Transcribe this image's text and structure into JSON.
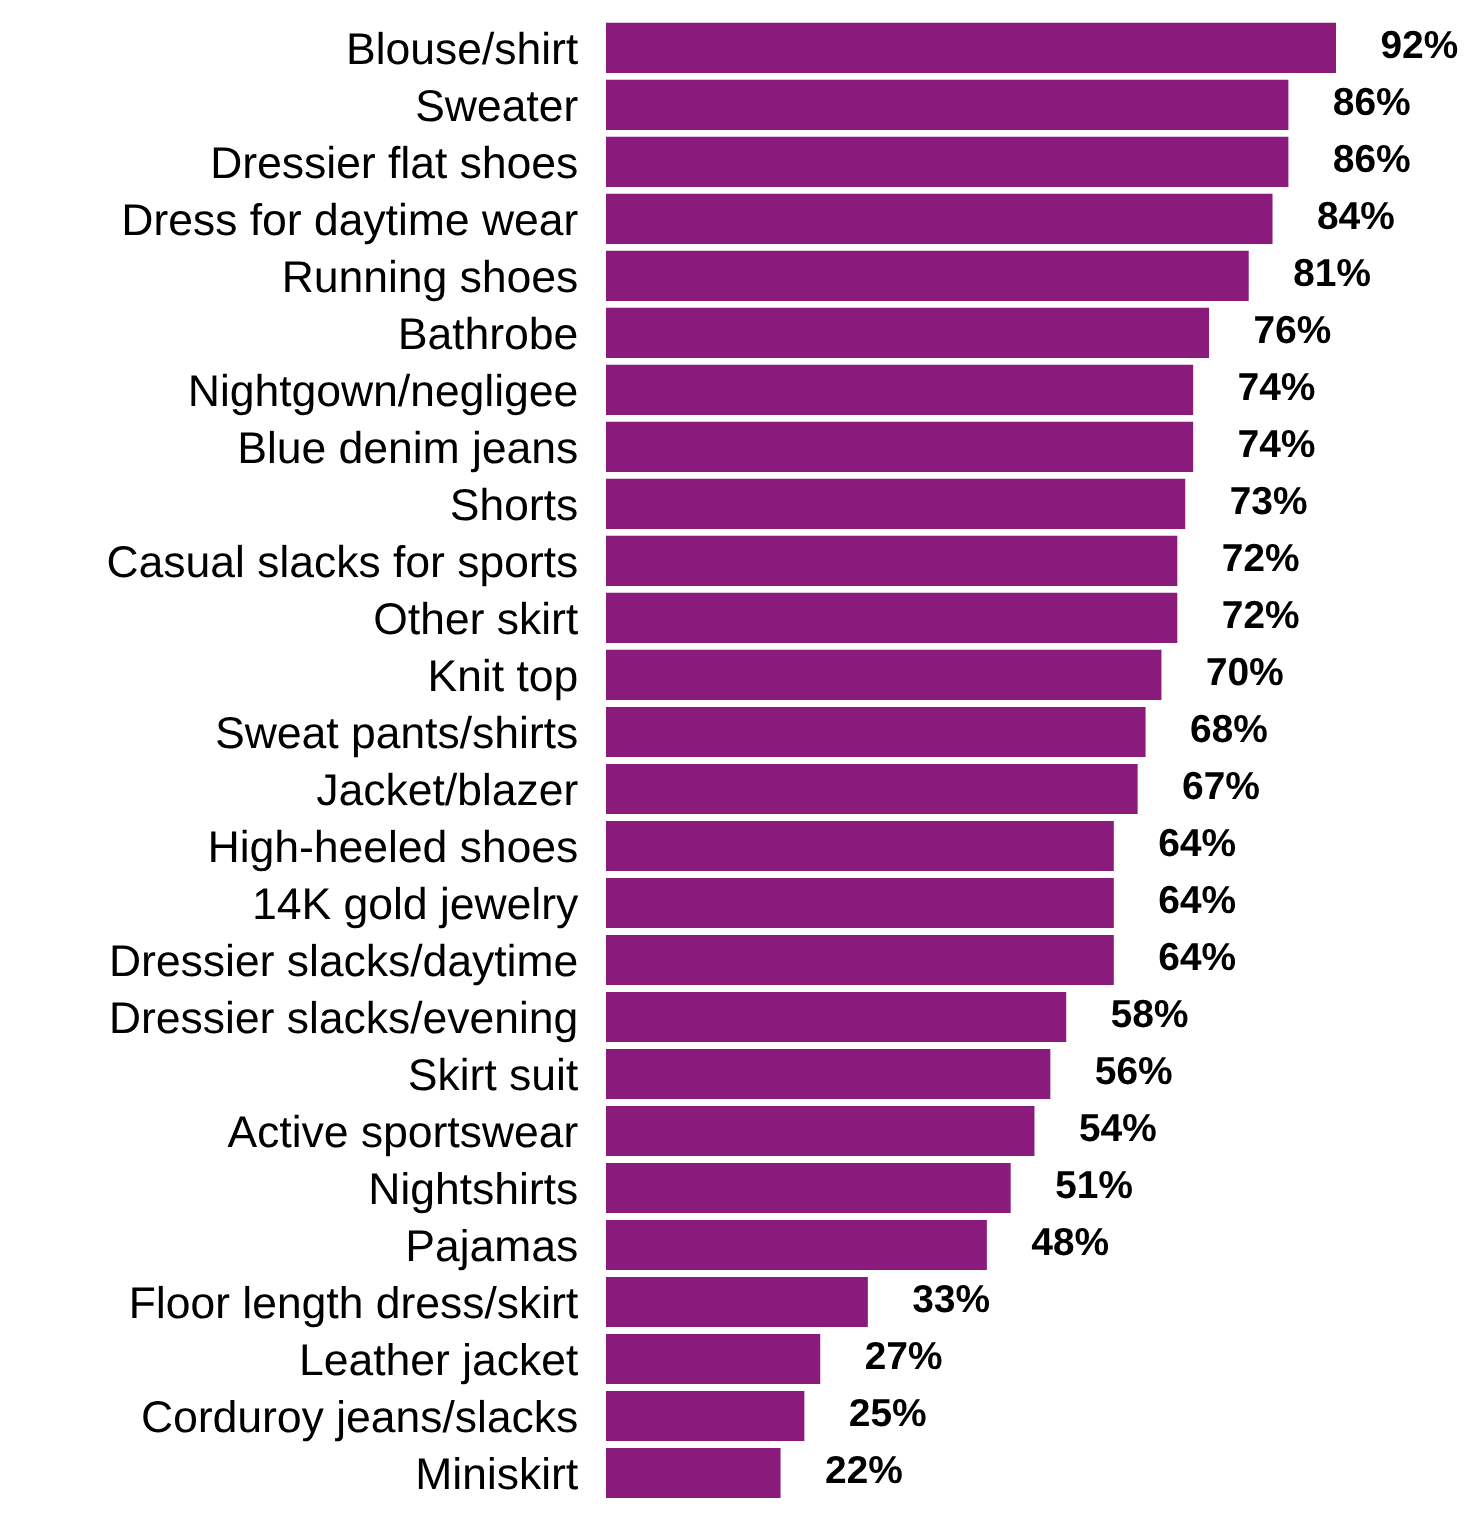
{
  "chart_data": {
    "type": "bar",
    "orientation": "horizontal",
    "color": "#8a1a7c",
    "categories": [
      "Blouse/shirt",
      "Sweater",
      "Dressier flat shoes",
      "Dress for daytime wear",
      "Running shoes",
      "Bathrobe",
      "Nightgown/negligee",
      "Blue denim jeans",
      "Shorts",
      "Casual slacks for sports",
      "Other skirt",
      "Knit top",
      "Sweat pants/shirts",
      "Jacket/blazer",
      "High-heeled shoes",
      "14K gold jewelry",
      "Dressier slacks/daytime",
      "Dressier slacks/evening",
      "Skirt suit",
      "Active sportswear",
      "Nightshirts",
      "Pajamas",
      "Floor length dress/skirt",
      "Leather jacket",
      "Corduroy jeans/slacks",
      "Miniskirt"
    ],
    "values": [
      92,
      86,
      86,
      84,
      81,
      76,
      74,
      74,
      73,
      72,
      72,
      70,
      68,
      67,
      64,
      64,
      64,
      58,
      56,
      54,
      51,
      48,
      33,
      27,
      25,
      22
    ],
    "value_labels": [
      "92%",
      "86%",
      "86%",
      "84%",
      "81%",
      "76%",
      "74%",
      "74%",
      "73%",
      "72%",
      "72%",
      "70%",
      "68%",
      "67%",
      "64%",
      "64%",
      "64%",
      "58%",
      "56%",
      "54%",
      "51%",
      "48%",
      "33%",
      "27%",
      "25%",
      "22%"
    ],
    "grid": false,
    "legend": false
  }
}
